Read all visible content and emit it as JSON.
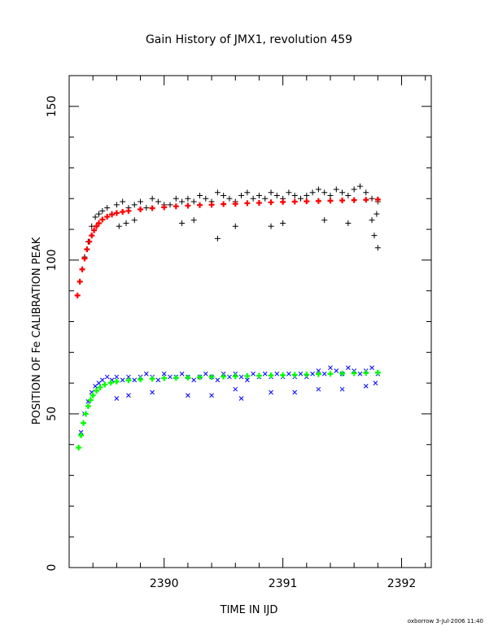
{
  "chart_data": {
    "type": "scatter",
    "title": "Gain History of JMX1, revolution 459",
    "xlabel": "TIME IN IJD",
    "ylabel": "POSITION OF Fe CALIBRATION PEAK",
    "xlim": [
      2389.2,
      2392.25
    ],
    "ylim": [
      0,
      160
    ],
    "xticks": [
      2390,
      2391,
      2392
    ],
    "yticks": [
      0,
      50,
      100,
      150
    ],
    "grid": false,
    "series": [
      {
        "role": "upper peak data",
        "marker": "plus",
        "color": "#000000",
        "x": [
          2389.29,
          2389.31,
          2389.33,
          2389.36,
          2389.39,
          2389.42,
          2389.45,
          2389.48,
          2389.52,
          2389.56,
          2389.6,
          2389.65,
          2389.7,
          2389.75,
          2389.8,
          2389.85,
          2389.9,
          2389.95,
          2390.0,
          2390.05,
          2390.1,
          2390.15,
          2390.2,
          2390.25,
          2390.3,
          2390.35,
          2390.4,
          2390.45,
          2390.5,
          2390.55,
          2390.6,
          2390.65,
          2390.7,
          2390.75,
          2390.8,
          2390.85,
          2390.9,
          2390.95,
          2391.0,
          2391.05,
          2391.1,
          2391.15,
          2391.2,
          2391.25,
          2391.3,
          2391.35,
          2391.4,
          2391.45,
          2391.5,
          2391.55,
          2391.6,
          2391.65,
          2391.7,
          2391.75,
          2391.8,
          2389.62,
          2389.68,
          2389.75,
          2390.15,
          2390.25,
          2390.45,
          2390.6,
          2390.9,
          2391.0,
          2391.35,
          2391.55,
          2391.75,
          2391.77,
          2391.8,
          2391.79
        ],
        "y": [
          93,
          97,
          101,
          106,
          111,
          114,
          115,
          116,
          117,
          115,
          118,
          119,
          117,
          118,
          119,
          117,
          120,
          119,
          118,
          118,
          120,
          119,
          120,
          119,
          121,
          120,
          119,
          122,
          121,
          120,
          119,
          121,
          122,
          120,
          121,
          120,
          122,
          121,
          120,
          122,
          121,
          120,
          121,
          122,
          123,
          122,
          121,
          123,
          122,
          121,
          123,
          124,
          122,
          120,
          119,
          111,
          112,
          113,
          112,
          113,
          107,
          111,
          111,
          112,
          113,
          112,
          113,
          108,
          104,
          115
        ]
      },
      {
        "role": "upper peak fit",
        "marker": "plus",
        "color": "#ff0000",
        "x": [
          2389.27,
          2389.29,
          2389.31,
          2389.33,
          2389.35,
          2389.37,
          2389.39,
          2389.41,
          2389.43,
          2389.45,
          2389.48,
          2389.52,
          2389.56,
          2389.6,
          2389.65,
          2389.7,
          2389.8,
          2389.9,
          2390.0,
          2390.1,
          2390.2,
          2390.3,
          2390.4,
          2390.5,
          2390.6,
          2390.7,
          2390.8,
          2390.9,
          2391.0,
          2391.1,
          2391.2,
          2391.3,
          2391.4,
          2391.5,
          2391.6,
          2391.7,
          2391.8
        ],
        "y": [
          88.5,
          93,
          97,
          100.5,
          103.5,
          106,
          108,
          109.7,
          111,
          112,
          113.2,
          114.1,
          114.8,
          115.3,
          115.7,
          116,
          116.5,
          116.9,
          117.2,
          117.5,
          117.7,
          117.9,
          118,
          118.2,
          118.3,
          118.5,
          118.6,
          118.8,
          118.9,
          119,
          119.1,
          119.2,
          119.3,
          119.4,
          119.5,
          119.6,
          119.7
        ]
      },
      {
        "role": "lower peak data",
        "marker": "cross",
        "color": "#0000ff",
        "x": [
          2389.3,
          2389.33,
          2389.36,
          2389.39,
          2389.42,
          2389.45,
          2389.48,
          2389.52,
          2389.56,
          2389.6,
          2389.65,
          2389.7,
          2389.75,
          2389.8,
          2389.85,
          2389.9,
          2389.95,
          2390.0,
          2390.05,
          2390.1,
          2390.15,
          2390.2,
          2390.25,
          2390.3,
          2390.35,
          2390.4,
          2390.45,
          2390.5,
          2390.55,
          2390.6,
          2390.65,
          2390.7,
          2390.75,
          2390.8,
          2390.85,
          2390.9,
          2390.95,
          2391.0,
          2391.05,
          2391.1,
          2391.15,
          2391.2,
          2391.25,
          2391.3,
          2391.35,
          2391.4,
          2391.45,
          2391.5,
          2391.55,
          2391.6,
          2391.65,
          2391.7,
          2391.75,
          2391.8,
          2389.6,
          2389.7,
          2389.9,
          2390.2,
          2390.4,
          2390.6,
          2390.65,
          2390.9,
          2391.1,
          2391.3,
          2391.5,
          2391.7,
          2391.78
        ],
        "y": [
          44,
          50,
          54,
          57,
          59,
          60,
          61,
          62,
          61,
          62,
          61,
          62,
          61,
          62,
          63,
          62,
          61,
          63,
          62,
          62,
          63,
          62,
          61,
          62,
          63,
          62,
          61,
          63,
          62,
          63,
          62,
          61,
          63,
          62,
          63,
          62,
          63,
          62,
          63,
          62,
          63,
          62,
          63,
          64,
          63,
          65,
          64,
          63,
          65,
          64,
          63,
          64,
          65,
          63,
          55,
          56,
          57,
          56,
          56,
          58,
          55,
          57,
          57,
          58,
          58,
          59,
          60
        ]
      },
      {
        "role": "lower peak fit",
        "marker": "plus",
        "color": "#00ff00",
        "x": [
          2389.28,
          2389.3,
          2389.32,
          2389.34,
          2389.36,
          2389.38,
          2389.4,
          2389.43,
          2389.46,
          2389.5,
          2389.55,
          2389.6,
          2389.7,
          2389.8,
          2389.9,
          2390.0,
          2390.1,
          2390.2,
          2390.3,
          2390.4,
          2390.5,
          2390.6,
          2390.7,
          2390.8,
          2390.9,
          2391.0,
          2391.1,
          2391.2,
          2391.3,
          2391.4,
          2391.5,
          2391.6,
          2391.7,
          2391.8
        ],
        "y": [
          39,
          43,
          47,
          50,
          52.5,
          54.5,
          56,
          57.5,
          58.6,
          59.5,
          60.1,
          60.5,
          60.9,
          61.2,
          61.4,
          61.6,
          61.7,
          61.8,
          61.9,
          62,
          62.1,
          62.2,
          62.3,
          62.4,
          62.5,
          62.6,
          62.7,
          62.8,
          62.9,
          63,
          63.1,
          63.2,
          63.3,
          63.4
        ]
      }
    ]
  },
  "footer": "oxborrow  3-Jul-2006 11:40",
  "colors": {
    "background": "#ffffff",
    "axes": "#000000"
  }
}
